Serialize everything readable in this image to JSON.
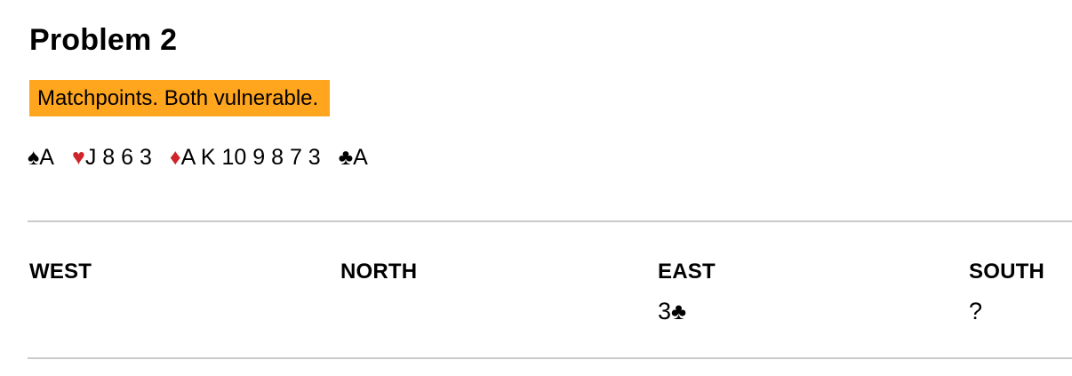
{
  "meta": {
    "title": "Problem 2",
    "conditions": "Matchpoints. Both vulnerable."
  },
  "colors": {
    "highlight_bg": "#FFA51E",
    "suit_red": "#CE252B",
    "suit_black": "#000000",
    "divider": "#CBCBCB",
    "text": "#000000",
    "background": "#FFFFFF"
  },
  "hand": {
    "suits": [
      {
        "name": "spades",
        "symbol": "♠",
        "color": "black",
        "cards": "A"
      },
      {
        "name": "hearts",
        "symbol": "♥",
        "color": "red",
        "cards": "J 8 6 3"
      },
      {
        "name": "diamonds",
        "symbol": "♦",
        "color": "red",
        "cards": "A K 10 9 8 7 3"
      },
      {
        "name": "clubs",
        "symbol": "♣",
        "color": "black",
        "cards": "A"
      }
    ]
  },
  "auction": {
    "seats": [
      "WEST",
      "NORTH",
      "EAST",
      "SOUTH"
    ],
    "calls": [
      {
        "seat": "WEST",
        "text": ""
      },
      {
        "seat": "NORTH",
        "text": ""
      },
      {
        "seat": "EAST",
        "level": "3",
        "suit_symbol": "♣"
      },
      {
        "seat": "SOUTH",
        "text": "?"
      }
    ]
  }
}
